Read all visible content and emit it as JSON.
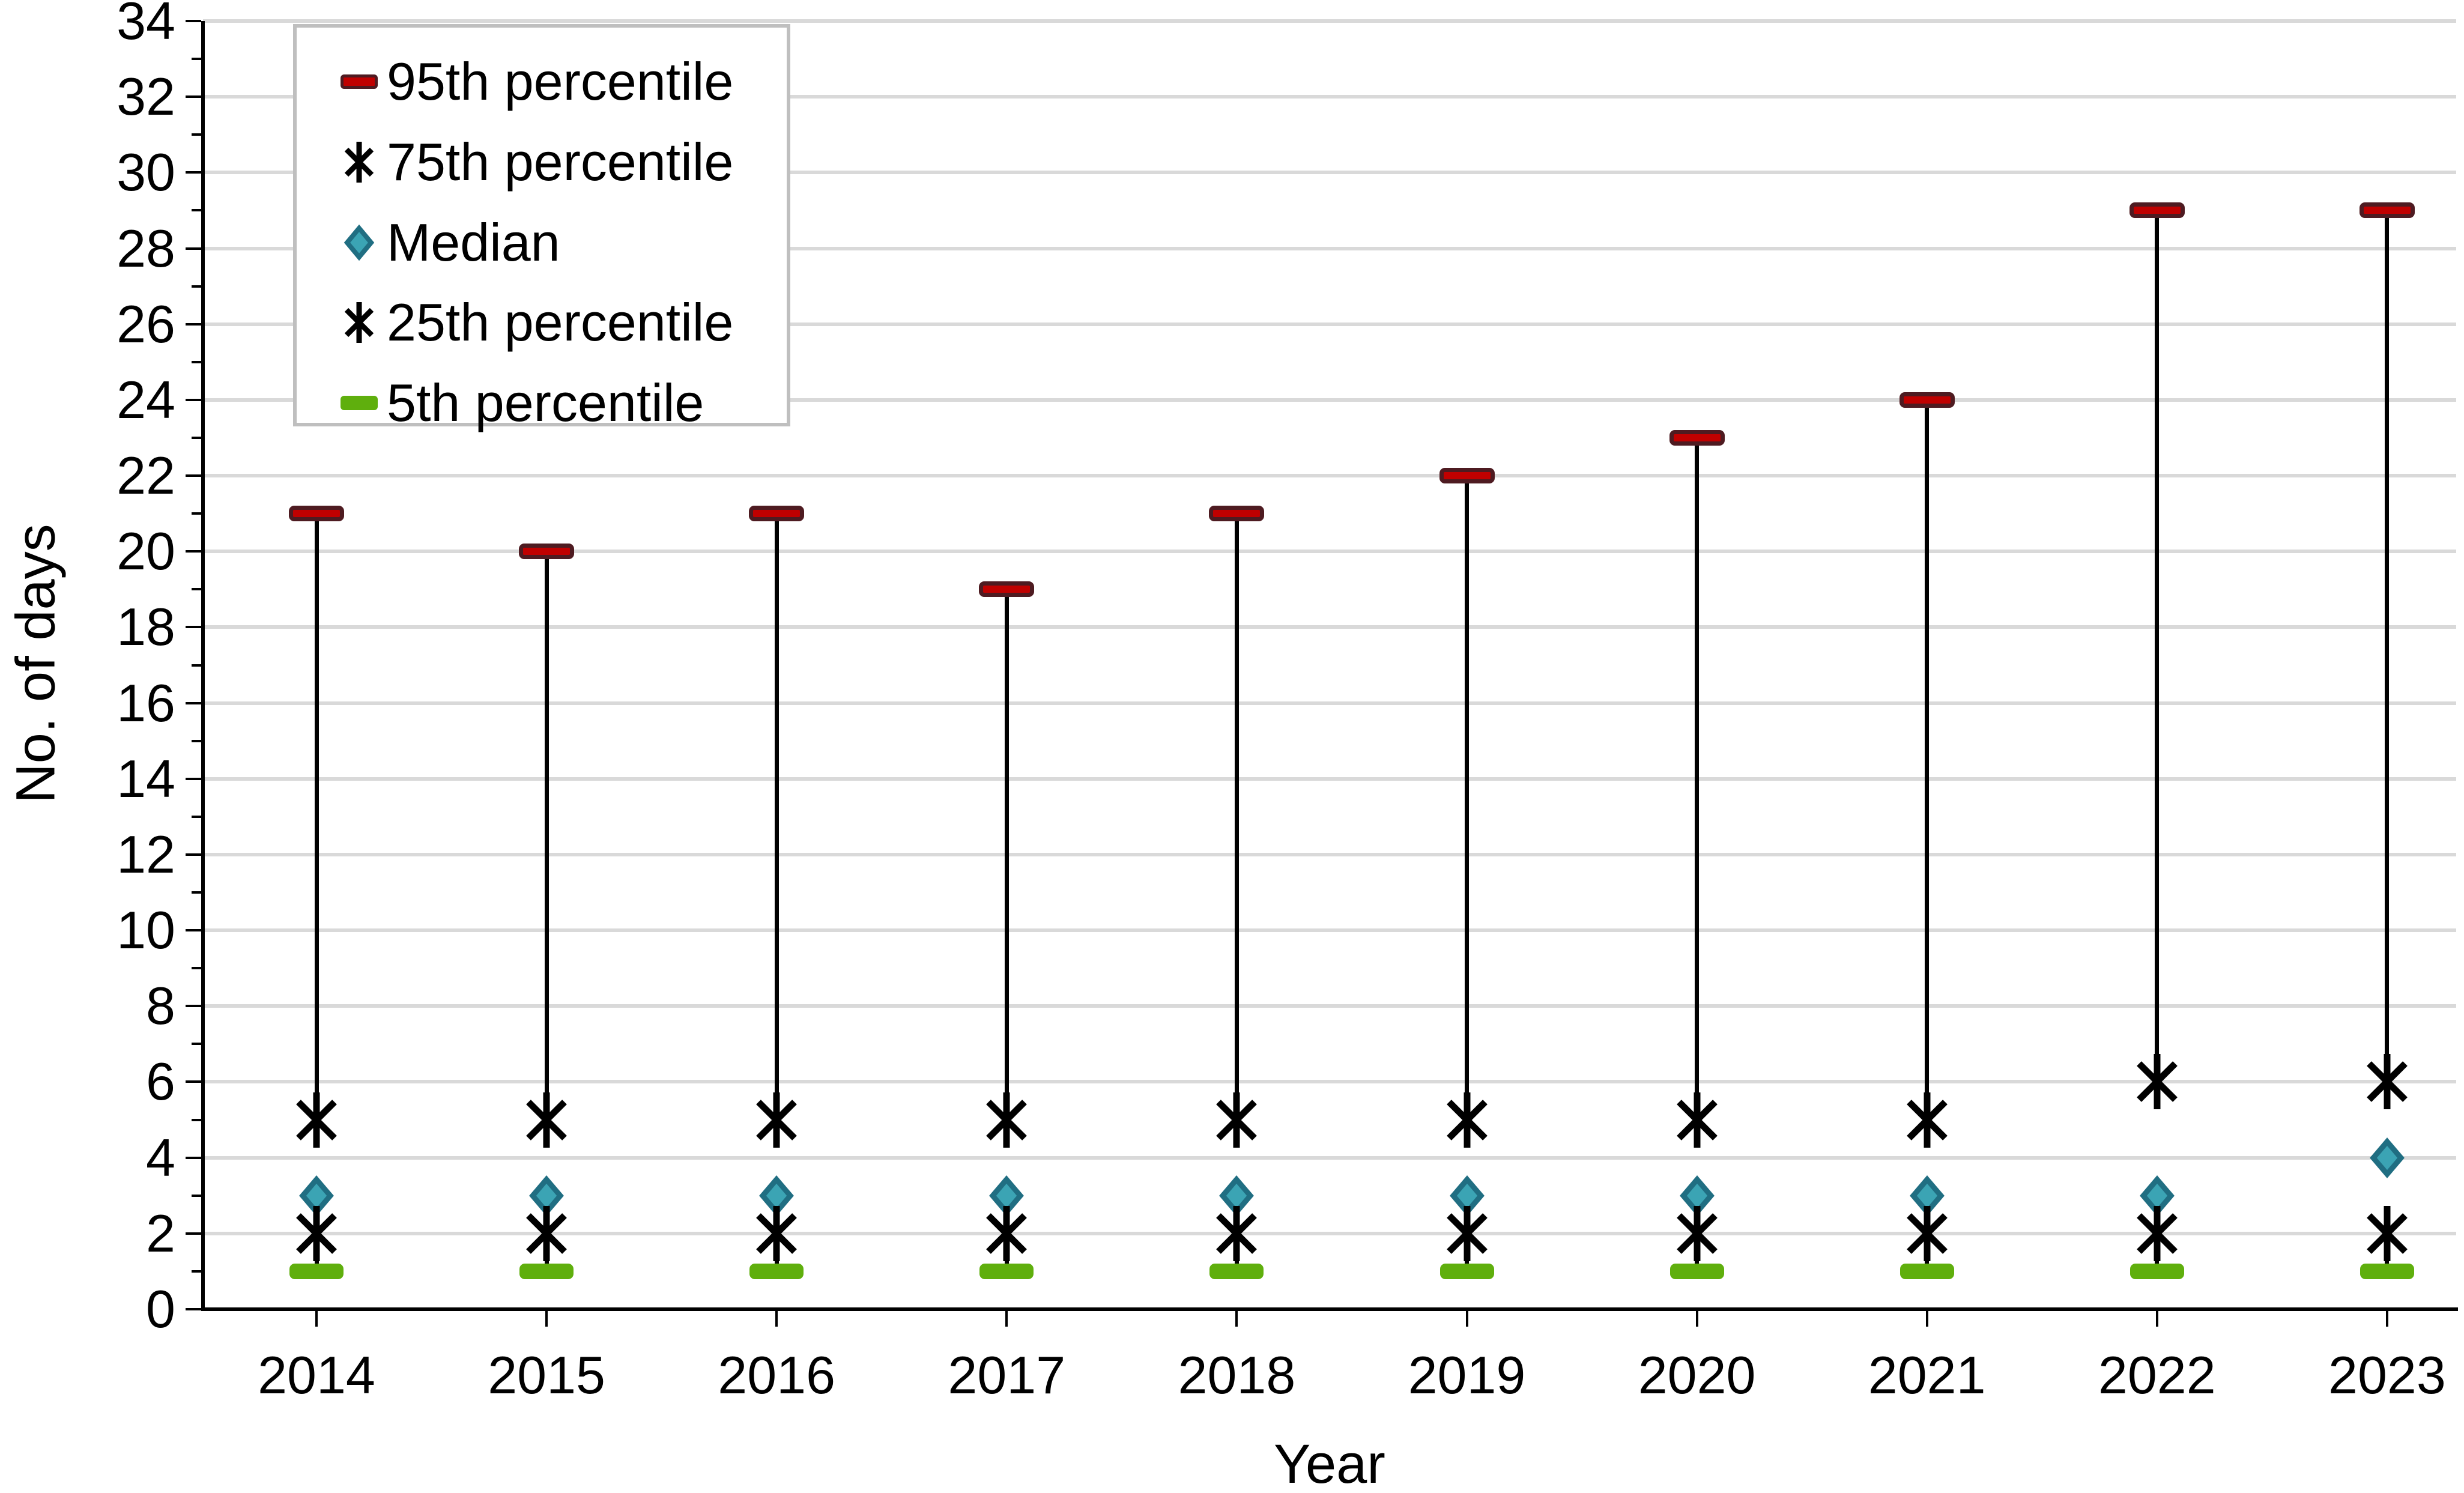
{
  "chart": {
    "y_axis": {
      "title": "No. of days",
      "min": 0,
      "max": 34,
      "label_step": 2,
      "minor_tick_step": 1
    },
    "x_axis": {
      "title": "Year"
    },
    "legend": {
      "items": [
        {
          "label": "95th percentile",
          "marker": "dash",
          "color": "#C00000",
          "border_color": "#4E1B21"
        },
        {
          "label": "75th percentile",
          "marker": "asterisk",
          "color": "#000000",
          "border_color": "#000000"
        },
        {
          "label": "Median",
          "marker": "diamond",
          "color": "#3BA4B4",
          "border_color": "#206E82"
        },
        {
          "label": "25th percentile",
          "marker": "asterisk",
          "color": "#000000",
          "border_color": "#000000"
        },
        {
          "label": "5th percentile",
          "marker": "dash",
          "color": "#5FAF0D",
          "border_color": "#5FAF0D"
        }
      ]
    }
  },
  "chart_data": {
    "type": "scatter",
    "subtype": "percentile-high-low",
    "title": "",
    "xlabel": "Year",
    "ylabel": "No. of days",
    "ylim": [
      0,
      34
    ],
    "grid": true,
    "legend_position": "top-left-inside",
    "categories": [
      "2014",
      "2015",
      "2016",
      "2017",
      "2018",
      "2019",
      "2020",
      "2021",
      "2022",
      "2023"
    ],
    "series": [
      {
        "name": "95th percentile",
        "marker": "dash",
        "color": "#C00000",
        "border_color": "#4E1B21",
        "values": [
          21,
          20,
          21,
          19,
          21,
          22,
          23,
          24,
          29,
          29
        ]
      },
      {
        "name": "75th percentile",
        "marker": "asterisk",
        "color": "#000000",
        "border_color": "#000000",
        "values": [
          5,
          5,
          5,
          5,
          5,
          5,
          5,
          5,
          6,
          6
        ]
      },
      {
        "name": "Median",
        "marker": "diamond",
        "color": "#3BA4B4",
        "border_color": "#206E82",
        "values": [
          3,
          3,
          3,
          3,
          3,
          3,
          3,
          3,
          3,
          4
        ]
      },
      {
        "name": "25th percentile",
        "marker": "asterisk",
        "color": "#000000",
        "border_color": "#000000",
        "values": [
          2,
          2,
          2,
          2,
          2,
          2,
          2,
          2,
          2,
          2
        ]
      },
      {
        "name": "5th percentile",
        "marker": "dash",
        "color": "#5FAF0D",
        "border_color": "#5FAF0D",
        "values": [
          1,
          1,
          1,
          1,
          1,
          1,
          1,
          1,
          1,
          1
        ]
      }
    ],
    "high_low_lines": [
      {
        "from": "95th percentile",
        "to": "75th percentile"
      },
      {
        "from": "25th percentile",
        "to": "5th percentile"
      }
    ],
    "gridline_color": "#D9D9D9",
    "axis_color": "#000000",
    "legend_border_color": "#BFBFBF"
  }
}
